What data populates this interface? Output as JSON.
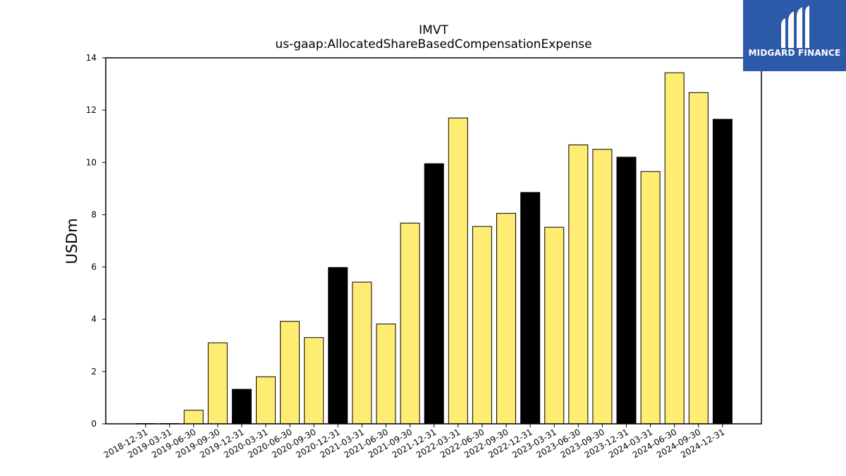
{
  "chart_data": {
    "type": "bar",
    "title": "IMVT",
    "subtitle": "us-gaap:AllocatedShareBasedCompensationExpense",
    "xlabel": "",
    "ylabel": "USDm",
    "ylim": [
      0,
      14
    ],
    "yticks": [
      "0",
      "2",
      "4",
      "6",
      "8",
      "10",
      "12",
      "14"
    ],
    "grid": false,
    "categories": [
      "2018-12-31",
      "2019-03-31",
      "2019-06-30",
      "2019-09-30",
      "2019-12-31",
      "2020-03-31",
      "2020-06-30",
      "2020-09-30",
      "2020-12-31",
      "2021-03-31",
      "2021-06-30",
      "2021-09-30",
      "2021-12-31",
      "2022-03-31",
      "2022-06-30",
      "2022-09-30",
      "2022-12-31",
      "2023-03-31",
      "2023-06-30",
      "2023-09-30",
      "2023-12-31",
      "2024-03-31",
      "2024-06-30",
      "2024-09-30",
      "2024-12-31"
    ],
    "values": [
      0.01,
      0.01,
      0.52,
      3.1,
      1.32,
      1.8,
      3.92,
      3.3,
      5.98,
      5.42,
      3.82,
      7.68,
      9.95,
      11.7,
      7.55,
      8.05,
      8.85,
      7.52,
      10.67,
      10.5,
      10.2,
      9.65,
      13.43,
      12.67,
      11.65
    ],
    "colors": {
      "quarter": "#ffec73",
      "year_end": "#000000",
      "edge": "#000000"
    },
    "highlight_categories": [
      "2019-12-31",
      "2020-12-31",
      "2021-12-31",
      "2022-12-31",
      "2023-12-31",
      "2024-12-31"
    ]
  },
  "logo": {
    "text": "MIDGARD FINANCE",
    "bg": "#2d5aa8"
  }
}
